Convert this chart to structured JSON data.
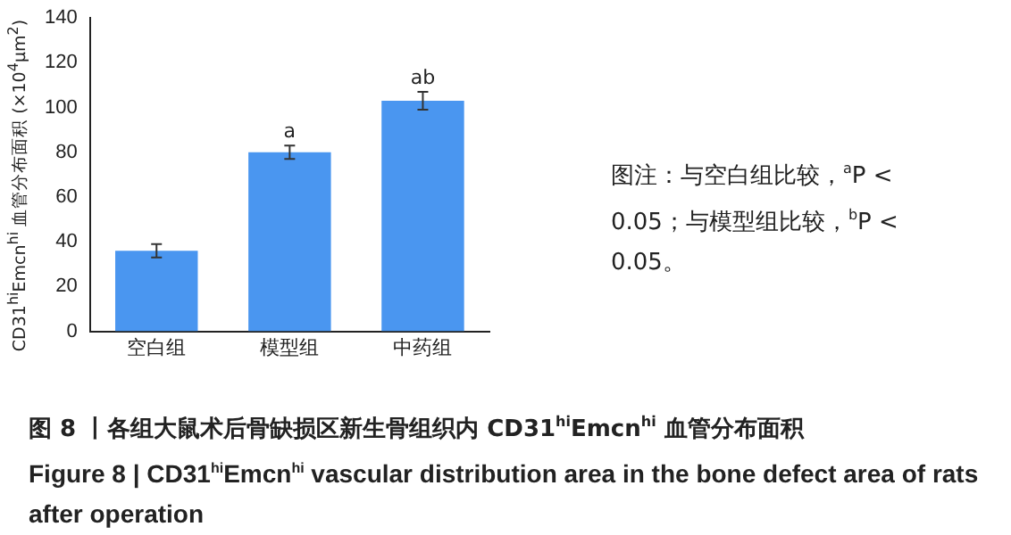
{
  "chart_data": {
    "type": "bar",
    "title": "图 8 丨各组大鼠术后骨缺损区新生骨组织内 CD31$^{hi}$Emcn$^{hi}$ 血管分布面积",
    "subtitle": "Figure 8 | CD31$^{hi}$Emcn$^{hi}$ vascular distribution area in the bone defect area of rats after operation",
    "ylabel": "CD31$^{hi}$Emcn$^{hi}$ 血管分布面积 (×10$^{4}$μm$^{2}$)",
    "categories": [
      "空白组",
      "模型组",
      "中药组"
    ],
    "values": [
      36,
      80,
      103
    ],
    "errors": [
      3,
      3,
      4
    ],
    "color": "#4a96f0",
    "ylim": [
      0,
      140
    ],
    "yticks": [
      0,
      20,
      40,
      60,
      80,
      100,
      120,
      140
    ],
    "grid": false,
    "legend": false,
    "annotations": [
      {
        "text": "a",
        "x": "模型组",
        "y": 83
      },
      {
        "text": "ab",
        "x": "中药组",
        "y": 107
      },
      "图注：与空白组比较，$^{a}$P < 0.05；与模型组比较，$^{b}$P < 0.05。"
    ]
  }
}
